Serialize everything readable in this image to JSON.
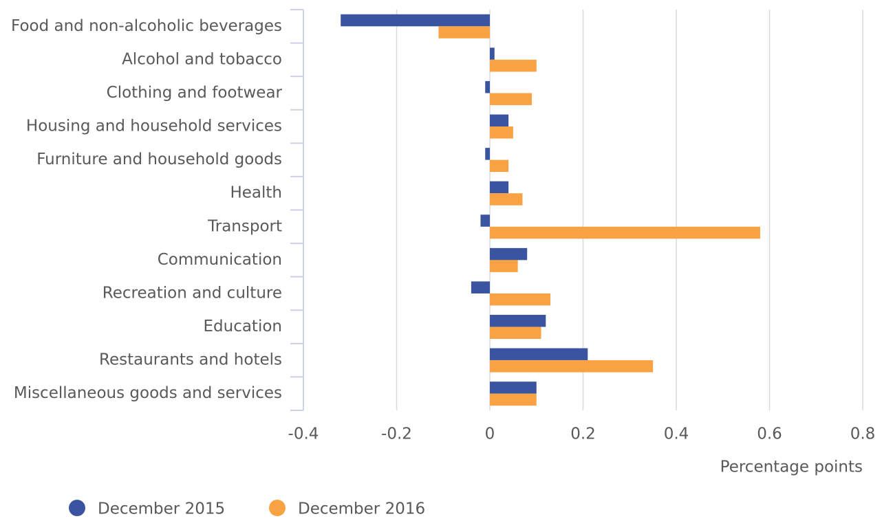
{
  "chart_data": {
    "type": "bar",
    "orientation": "horizontal",
    "categories": [
      "Food and non-alcoholic beverages",
      "Alcohol and tobacco",
      "Clothing and footwear",
      "Housing and household services",
      "Furniture and household goods",
      "Health",
      "Transport",
      "Communication",
      "Recreation and culture",
      "Education",
      "Restaurants and hotels",
      "Miscellaneous goods and services"
    ],
    "series": [
      {
        "name": "December 2015",
        "color": "#3b54a0",
        "values": [
          -0.32,
          0.01,
          -0.01,
          0.04,
          -0.01,
          0.04,
          -0.02,
          0.08,
          -0.04,
          0.12,
          0.21,
          0.1
        ]
      },
      {
        "name": "December 2016",
        "color": "#f9a243",
        "values": [
          -0.11,
          0.1,
          0.09,
          0.05,
          0.04,
          0.07,
          0.58,
          0.06,
          0.13,
          0.11,
          0.35,
          0.1
        ]
      }
    ],
    "xlabel": "Percentage points",
    "xlim": [
      -0.4,
      0.8
    ],
    "xticks": [
      -0.4,
      -0.2,
      0,
      0.2,
      0.4,
      0.6,
      0.8
    ],
    "grid": true,
    "legend": "bottom"
  }
}
